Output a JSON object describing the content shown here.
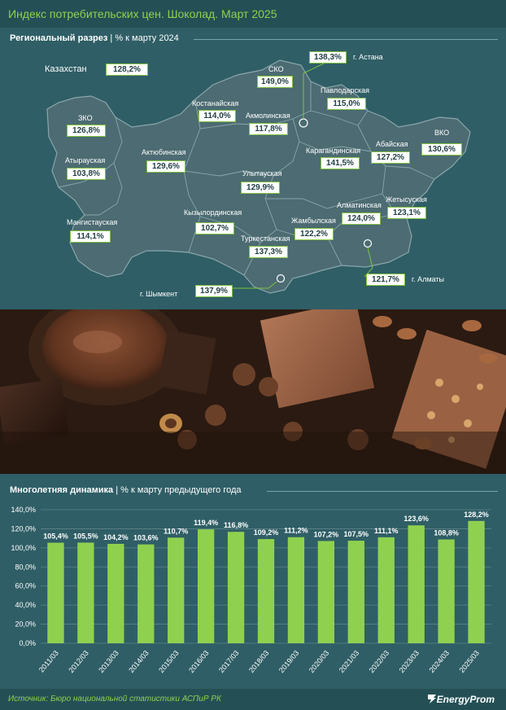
{
  "header": {
    "title": "Индекс потребительских цен. Шоколад. Март 2025"
  },
  "map": {
    "section_title": "Региональный разрез",
    "section_subtitle": "% к марту 2024",
    "kazakhstan": {
      "name": "Казахстан",
      "value": "128,2%"
    },
    "regions": [
      {
        "name": "СКО",
        "value": "149,0%"
      },
      {
        "name": "г. Астана",
        "value": "138,3%"
      },
      {
        "name": "Павлодарская",
        "value": "115,0%"
      },
      {
        "name": "Костанайская",
        "value": "114,0%"
      },
      {
        "name": "Акмолинская",
        "value": "117,8%"
      },
      {
        "name": "ЗКО",
        "value": "126,8%"
      },
      {
        "name": "Атырауская",
        "value": "103,8%"
      },
      {
        "name": "Актюбинская",
        "value": "129,6%"
      },
      {
        "name": "Карагандинская",
        "value": "141,5%"
      },
      {
        "name": "Абайская",
        "value": "127,2%"
      },
      {
        "name": "ВКО",
        "value": "130,6%"
      },
      {
        "name": "Улытауская",
        "value": "129,9%"
      },
      {
        "name": "Мангистауская",
        "value": "114,1%"
      },
      {
        "name": "Кызылординская",
        "value": "102,7%"
      },
      {
        "name": "Жамбылская",
        "value": "122,2%"
      },
      {
        "name": "Алматинская",
        "value": "124,0%"
      },
      {
        "name": "Жетысуская",
        "value": "123,1%"
      },
      {
        "name": "Туркестанская",
        "value": "137,3%"
      },
      {
        "name": "г. Шымкент",
        "value": "137,9%"
      },
      {
        "name": "г. Алматы",
        "value": "121,7%"
      }
    ]
  },
  "chart": {
    "section_title": "Многолетняя динамика",
    "section_subtitle": "% к марту предыдущего года"
  },
  "chart_data": {
    "type": "bar",
    "categories": [
      "2011/03",
      "2012/03",
      "2013/03",
      "2014/03",
      "2015/03",
      "2016/03",
      "2017/03",
      "2018/03",
      "2019/03",
      "2020/03",
      "2021/03",
      "2022/03",
      "2023/03",
      "2024/03",
      "2025/03"
    ],
    "values": [
      105.4,
      105.5,
      104.2,
      103.6,
      110.7,
      119.4,
      116.8,
      109.2,
      111.2,
      107.2,
      107.5,
      111.1,
      123.6,
      108.8,
      128.2
    ],
    "value_labels": [
      "105,4%",
      "105,5%",
      "104,2%",
      "103,6%",
      "110,7%",
      "119,4%",
      "116,8%",
      "109,2%",
      "111,2%",
      "107,2%",
      "107,5%",
      "111,1%",
      "123,6%",
      "108,8%",
      "128,2%"
    ],
    "yticks": [
      "0,0%",
      "20,0%",
      "40,0%",
      "60,0%",
      "80,0%",
      "100,0%",
      "120,0%",
      "140,0%"
    ],
    "ylim": [
      0,
      140
    ],
    "grid": true,
    "bar_color": "#8fd14f",
    "title": "",
    "xlabel": "",
    "ylabel": ""
  },
  "footer": {
    "source": "Источник: Бюро национальной статистики АСПиР РК",
    "brand": "EnergyProm"
  },
  "colors": {
    "accent": "#8fd14f",
    "background": "#2f5e66",
    "map_fill": "#4c6b72"
  }
}
